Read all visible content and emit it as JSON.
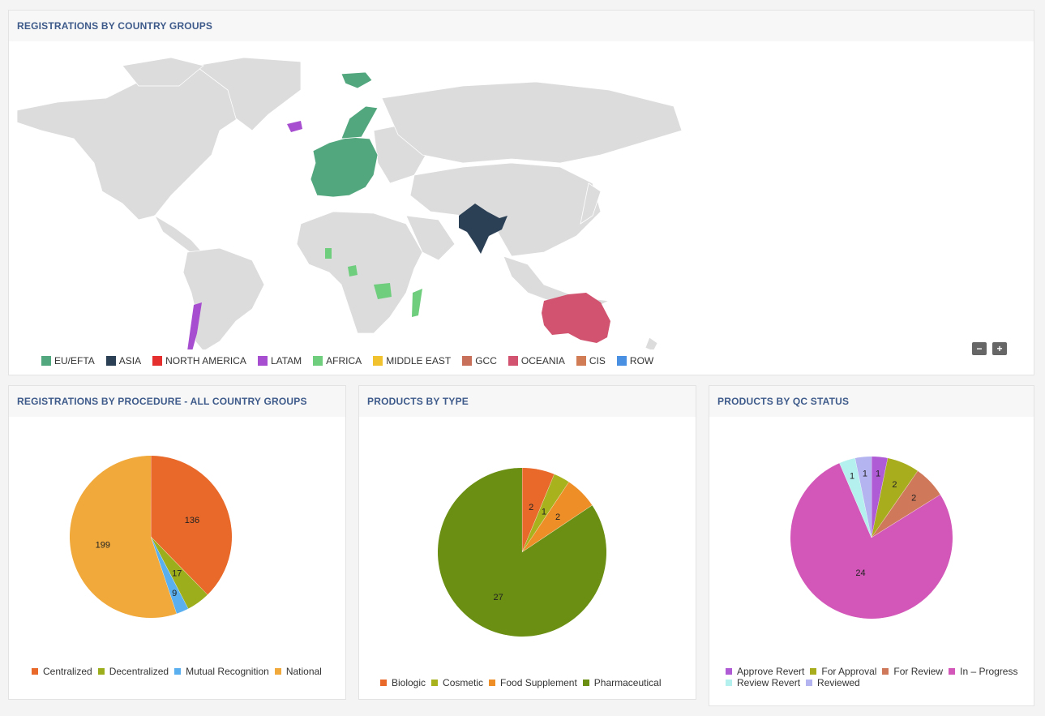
{
  "map_panel": {
    "title": "REGISTRATIONS BY COUNTRY GROUPS",
    "zoom_out": "−",
    "zoom_in": "+",
    "legend": [
      {
        "label": "EU/EFTA",
        "color": "#52a77e"
      },
      {
        "label": "ASIA",
        "color": "#2b3f55"
      },
      {
        "label": "NORTH AMERICA",
        "color": "#e52f2f"
      },
      {
        "label": "LATAM",
        "color": "#a74ed0"
      },
      {
        "label": "AFRICA",
        "color": "#6fcd7e"
      },
      {
        "label": "MIDDLE EAST",
        "color": "#f2c12e"
      },
      {
        "label": "GCC",
        "color": "#c9705a"
      },
      {
        "label": "OCEANIA",
        "color": "#d1536f"
      },
      {
        "label": "CIS",
        "color": "#d27c55"
      },
      {
        "label": "ROW",
        "color": "#4a90e2"
      }
    ]
  },
  "proc_panel": {
    "title": "REGISTRATIONS BY PROCEDURE - ALL COUNTRY GROUPS"
  },
  "type_panel": {
    "title": "PRODUCTS BY TYPE"
  },
  "qc_panel": {
    "title": "PRODUCTS BY QC STATUS"
  },
  "chart_data": [
    {
      "type": "pie",
      "title": "REGISTRATIONS BY PROCEDURE - ALL COUNTRY GROUPS",
      "categories": [
        "Centralized",
        "Decentralized",
        "Mutual Recognition",
        "National"
      ],
      "values": [
        136,
        17,
        9,
        199
      ],
      "colors": [
        "#e8692a",
        "#9dae1c",
        "#5aafee",
        "#f0a93a"
      ]
    },
    {
      "type": "pie",
      "title": "PRODUCTS BY TYPE",
      "categories": [
        "Biologic",
        "Cosmetic",
        "Food Supplement",
        "Pharmaceutical"
      ],
      "values": [
        2,
        1,
        2,
        27
      ],
      "colors": [
        "#e8692a",
        "#a7b21c",
        "#ee8e26",
        "#6a8f12"
      ]
    },
    {
      "type": "pie",
      "title": "PRODUCTS BY QC STATUS",
      "categories": [
        "Approve Revert",
        "For Approval",
        "For Review",
        "In – Progress",
        "Review Revert",
        "Reviewed"
      ],
      "values": [
        1,
        2,
        2,
        24,
        1,
        1
      ],
      "colors": [
        "#b05bd6",
        "#a8ad1e",
        "#d0785a",
        "#d257b8",
        "#b4f0ee",
        "#b4b4f0"
      ]
    }
  ]
}
